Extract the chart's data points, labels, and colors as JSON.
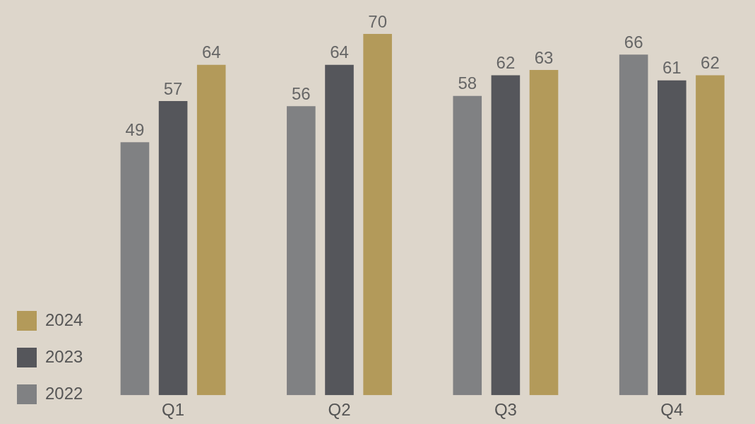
{
  "chart_data": {
    "type": "bar",
    "categories": [
      "Q1",
      "Q2",
      "Q3",
      "Q4"
    ],
    "series": [
      {
        "name": "2022",
        "color": "#808183",
        "values": [
          49,
          56,
          58,
          66
        ]
      },
      {
        "name": "2023",
        "color": "#55565b",
        "values": [
          57,
          64,
          62,
          61
        ]
      },
      {
        "name": "2024",
        "color": "#b39a5a",
        "values": [
          64,
          70,
          63,
          62
        ]
      }
    ],
    "data_labels": true,
    "legend": "bottom left",
    "grid": false
  }
}
